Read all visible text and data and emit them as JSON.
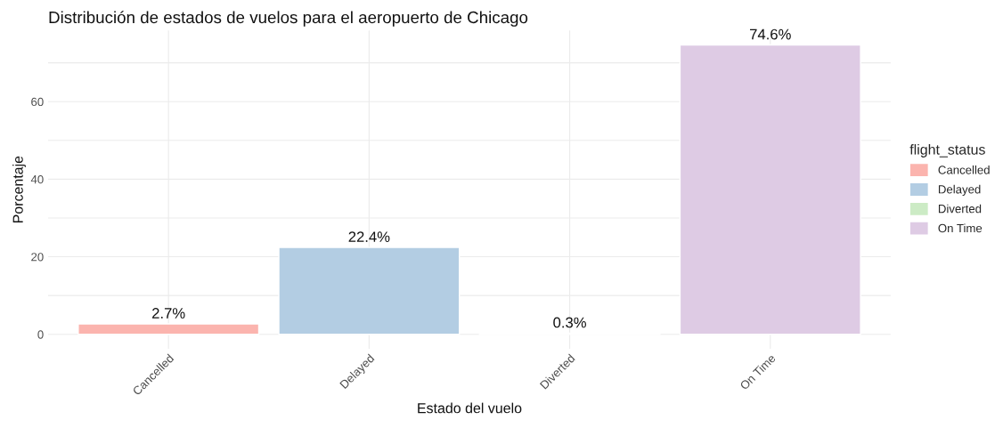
{
  "chart_data": {
    "type": "bar",
    "title": "Distribución de estados de vuelos para el aeropuerto de Chicago",
    "xlabel": "Estado del vuelo",
    "ylabel": "Porcentaje",
    "legend_title": "flight_status",
    "categories": [
      "Cancelled",
      "Delayed",
      "Diverted",
      "On Time"
    ],
    "series": [
      {
        "name": "Cancelled",
        "color": "#fbb4ae",
        "values": [
          2.7,
          null,
          null,
          null
        ],
        "value_labels": [
          "2.7%",
          null,
          null,
          null
        ]
      },
      {
        "name": "Delayed",
        "color": "#b3cde3",
        "values": [
          null,
          22.4,
          null,
          null
        ],
        "value_labels": [
          null,
          "22.4%",
          null,
          null
        ]
      },
      {
        "name": "Diverted",
        "color": "#ccebc5",
        "values": [
          null,
          null,
          0.3,
          null
        ],
        "value_labels": [
          null,
          null,
          "0.3%",
          null
        ]
      },
      {
        "name": "On Time",
        "color": "#decbe4",
        "values": [
          null,
          null,
          null,
          74.6
        ],
        "value_labels": [
          null,
          null,
          null,
          "74.6%"
        ]
      }
    ],
    "ylim": [
      -3.73,
      78.33
    ],
    "yticks": [
      0,
      {
        "value": 10,
        "label": null
      },
      20,
      {
        "value": 30,
        "label": null
      },
      40,
      {
        "value": 50,
        "label": null
      },
      60,
      {
        "value": 70,
        "label": null
      }
    ],
    "grid": true,
    "legend": "right"
  }
}
